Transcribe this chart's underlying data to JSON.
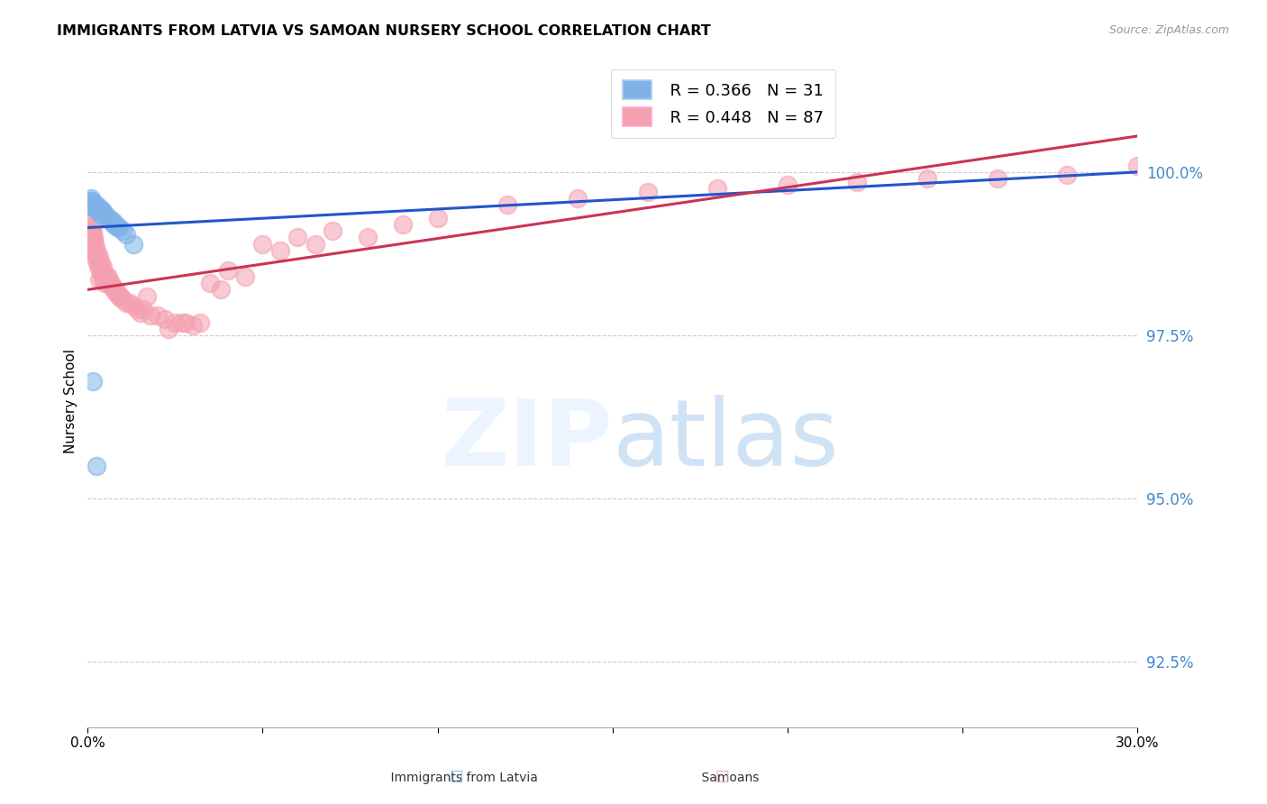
{
  "title": "IMMIGRANTS FROM LATVIA VS SAMOAN NURSERY SCHOOL CORRELATION CHART",
  "source": "Source: ZipAtlas.com",
  "ylabel": "Nursery School",
  "xlim": [
    0.0,
    30.0
  ],
  "ylim": [
    91.5,
    101.5
  ],
  "yticks": [
    92.5,
    95.0,
    97.5,
    100.0
  ],
  "ytick_labels": [
    "92.5%",
    "95.0%",
    "97.5%",
    "100.0%"
  ],
  "xtick_labels": [
    "0.0%",
    "",
    "",
    "",
    "",
    "",
    "30.0%"
  ],
  "xtick_vals": [
    0.0,
    5.0,
    10.0,
    15.0,
    20.0,
    25.0,
    30.0
  ],
  "legend_blue_r": "R = 0.366",
  "legend_blue_n": "N = 31",
  "legend_pink_r": "R = 0.448",
  "legend_pink_n": "N = 87",
  "blue_color": "#7fb3e8",
  "pink_color": "#f4a0b0",
  "blue_line_color": "#2255cc",
  "pink_line_color": "#cc3355",
  "blue_line": [
    99.15,
    100.0
  ],
  "pink_line": [
    98.2,
    100.55
  ],
  "blue_x": [
    0.05,
    0.08,
    0.1,
    0.12,
    0.15,
    0.18,
    0.2,
    0.22,
    0.25,
    0.28,
    0.3,
    0.33,
    0.35,
    0.38,
    0.4,
    0.42,
    0.45,
    0.5,
    0.55,
    0.6,
    0.65,
    0.7,
    0.75,
    0.8,
    0.85,
    0.9,
    1.0,
    1.1,
    1.3,
    0.15,
    0.25
  ],
  "blue_y": [
    99.5,
    99.55,
    99.6,
    99.55,
    99.5,
    99.45,
    99.5,
    99.45,
    99.5,
    99.45,
    99.4,
    99.4,
    99.45,
    99.35,
    99.4,
    99.4,
    99.35,
    99.35,
    99.3,
    99.3,
    99.25,
    99.25,
    99.2,
    99.2,
    99.15,
    99.15,
    99.1,
    99.05,
    98.9,
    96.8,
    95.5
  ],
  "pink_x": [
    0.05,
    0.07,
    0.09,
    0.1,
    0.12,
    0.14,
    0.15,
    0.17,
    0.18,
    0.2,
    0.22,
    0.25,
    0.27,
    0.3,
    0.32,
    0.35,
    0.37,
    0.4,
    0.42,
    0.45,
    0.48,
    0.5,
    0.55,
    0.58,
    0.6,
    0.65,
    0.7,
    0.75,
    0.8,
    0.85,
    0.9,
    0.95,
    1.0,
    1.1,
    1.2,
    1.3,
    1.5,
    1.6,
    1.8,
    2.0,
    2.2,
    2.5,
    2.8,
    3.0,
    3.2,
    3.5,
    3.8,
    4.0,
    4.5,
    5.0,
    5.5,
    6.0,
    6.5,
    7.0,
    8.0,
    9.0,
    10.0,
    12.0,
    14.0,
    16.0,
    18.0,
    20.0,
    22.0,
    24.0,
    26.0,
    28.0,
    30.0,
    0.06,
    0.08,
    0.11,
    0.13,
    0.16,
    0.19,
    0.23,
    0.26,
    0.29,
    0.33,
    0.38,
    0.43,
    0.47,
    1.4,
    2.3,
    1.7,
    2.7,
    0.62,
    0.72,
    0.82
  ],
  "pink_y": [
    99.2,
    99.1,
    99.15,
    99.0,
    99.05,
    99.1,
    98.9,
    98.95,
    99.0,
    98.8,
    98.85,
    98.7,
    98.75,
    98.6,
    98.7,
    98.55,
    98.6,
    98.5,
    98.55,
    98.4,
    98.45,
    98.4,
    98.35,
    98.4,
    98.3,
    98.3,
    98.25,
    98.2,
    98.2,
    98.15,
    98.1,
    98.1,
    98.05,
    98.0,
    98.0,
    97.95,
    97.85,
    97.9,
    97.8,
    97.8,
    97.75,
    97.7,
    97.7,
    97.65,
    97.7,
    98.3,
    98.2,
    98.5,
    98.4,
    98.9,
    98.8,
    99.0,
    98.9,
    99.1,
    99.0,
    99.2,
    99.3,
    99.5,
    99.6,
    99.7,
    99.75,
    99.8,
    99.85,
    99.9,
    99.9,
    99.95,
    100.1,
    99.15,
    99.05,
    99.1,
    99.0,
    98.95,
    98.85,
    98.75,
    98.65,
    98.55,
    98.35,
    98.45,
    98.35,
    98.3,
    97.9,
    97.6,
    98.1,
    97.7,
    98.3,
    98.25,
    98.15
  ]
}
